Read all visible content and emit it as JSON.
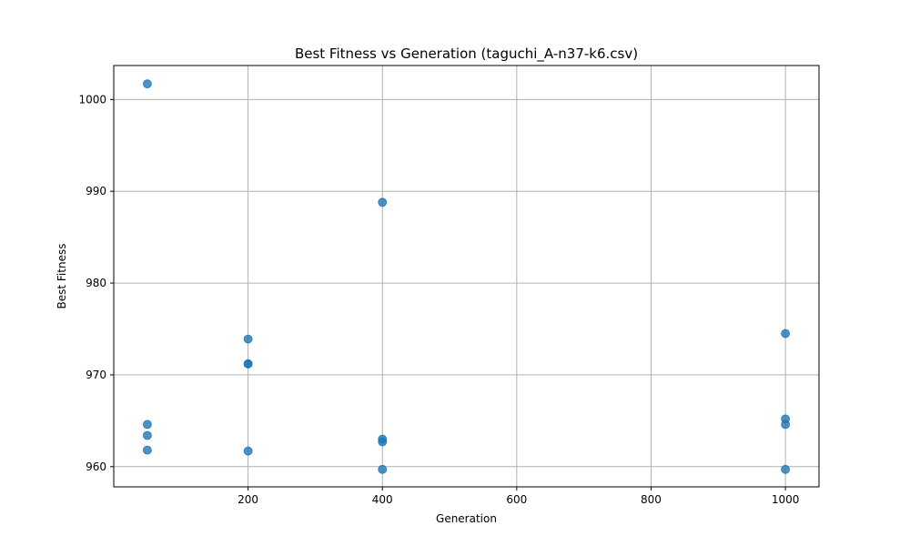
{
  "chart_data": {
    "type": "scatter",
    "title": "Best Fitness vs Generation (taguchi_A-n37-k6.csv)",
    "xlabel": "Generation",
    "ylabel": "Best Fitness",
    "xlim": [
      0,
      1050
    ],
    "ylim": [
      957.8,
      1003.7
    ],
    "xticks": [
      200,
      400,
      600,
      800,
      1000
    ],
    "xtick_labels": [
      "200",
      "400",
      "600",
      "800",
      "1000"
    ],
    "yticks": [
      960,
      970,
      980,
      990,
      1000
    ],
    "ytick_labels": [
      "960",
      "970",
      "980",
      "990",
      "1000"
    ],
    "grid": true,
    "marker_color": "#1f77b4",
    "marker_opacity": 0.8,
    "points": [
      {
        "x": 50,
        "y": 1001.7
      },
      {
        "x": 50,
        "y": 964.6
      },
      {
        "x": 50,
        "y": 963.4
      },
      {
        "x": 50,
        "y": 961.8
      },
      {
        "x": 200,
        "y": 973.9
      },
      {
        "x": 200,
        "y": 971.2
      },
      {
        "x": 200,
        "y": 971.2
      },
      {
        "x": 200,
        "y": 961.7
      },
      {
        "x": 400,
        "y": 988.8
      },
      {
        "x": 400,
        "y": 963.0
      },
      {
        "x": 400,
        "y": 962.7
      },
      {
        "x": 400,
        "y": 959.7
      },
      {
        "x": 1000,
        "y": 974.5
      },
      {
        "x": 1000,
        "y": 965.2
      },
      {
        "x": 1000,
        "y": 964.6
      },
      {
        "x": 1000,
        "y": 959.7
      }
    ]
  }
}
